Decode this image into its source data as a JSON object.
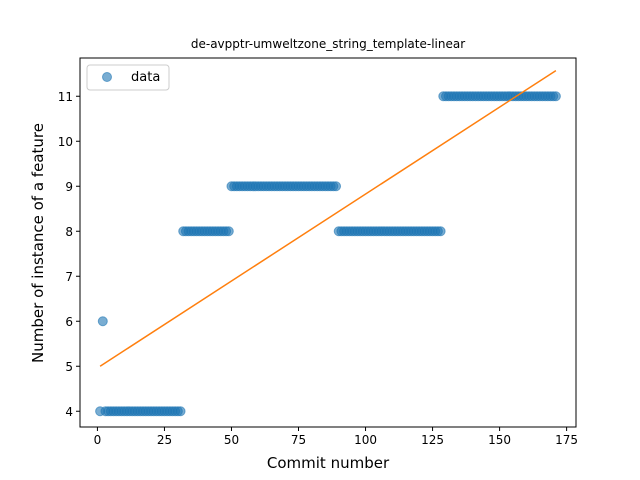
{
  "chart_data": {
    "type": "scatter",
    "title": "de-avpptr-umweltzone_string_template-linear",
    "xlabel": "Commit number",
    "ylabel": "Number of instance of a feature",
    "xlim": [
      -6.5,
      178.5
    ],
    "ylim": [
      3.65,
      11.85
    ],
    "xticks": [
      0,
      25,
      50,
      75,
      100,
      125,
      150,
      175
    ],
    "yticks": [
      4,
      5,
      6,
      7,
      8,
      9,
      10,
      11
    ],
    "grid": false,
    "legend_position": "top-left",
    "colors": {
      "data": "#1f77b4",
      "fit": "#ff7f0e"
    },
    "series": [
      {
        "name": "data",
        "kind": "scatter",
        "segments": [
          {
            "x_from": 1,
            "x_to": 1,
            "y": 4
          },
          {
            "x_from": 2,
            "x_to": 2,
            "y": 6
          },
          {
            "x_from": 3,
            "x_to": 31,
            "y": 4
          },
          {
            "x_from": 32,
            "x_to": 49,
            "y": 8
          },
          {
            "x_from": 50,
            "x_to": 89,
            "y": 9
          },
          {
            "x_from": 90,
            "x_to": 128,
            "y": 8
          },
          {
            "x_from": 129,
            "x_to": 171,
            "y": 11
          }
        ]
      },
      {
        "kind": "line",
        "x": [
          1,
          171
        ],
        "y": [
          5.0,
          11.57
        ]
      }
    ]
  }
}
